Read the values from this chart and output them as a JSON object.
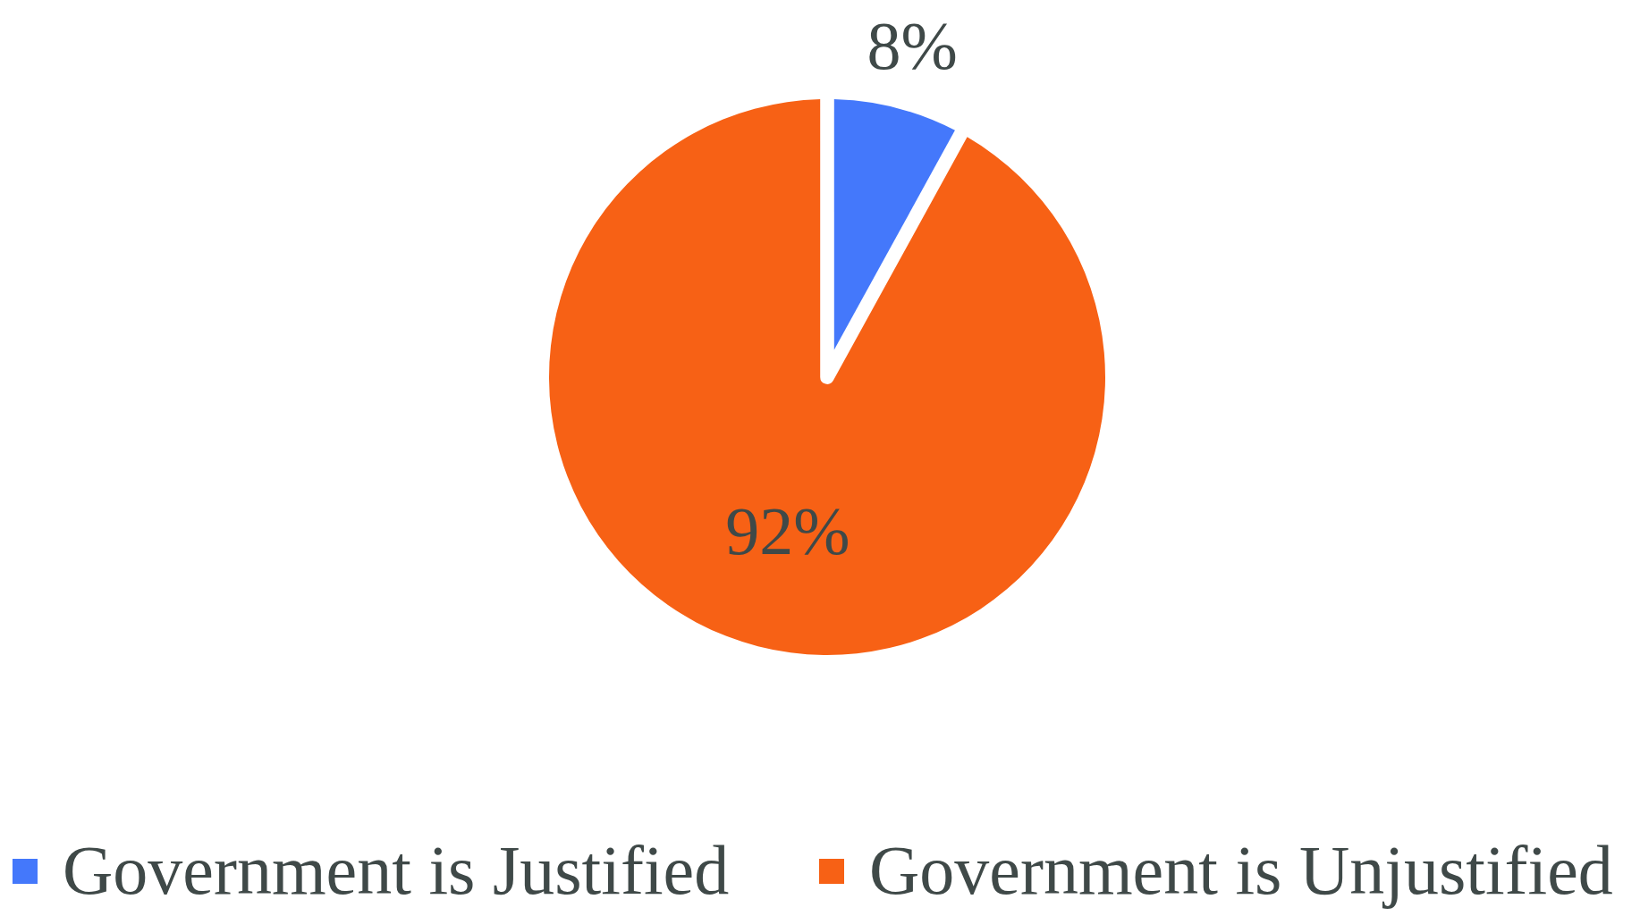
{
  "chart_data": {
    "type": "pie",
    "categories": [
      "Government is Justified",
      "Government is Unjustified"
    ],
    "values": [
      8,
      92
    ],
    "colors": [
      "#4478fb",
      "#f76115"
    ],
    "value_labels": [
      "8%",
      "92%"
    ],
    "legend": "bottom"
  }
}
